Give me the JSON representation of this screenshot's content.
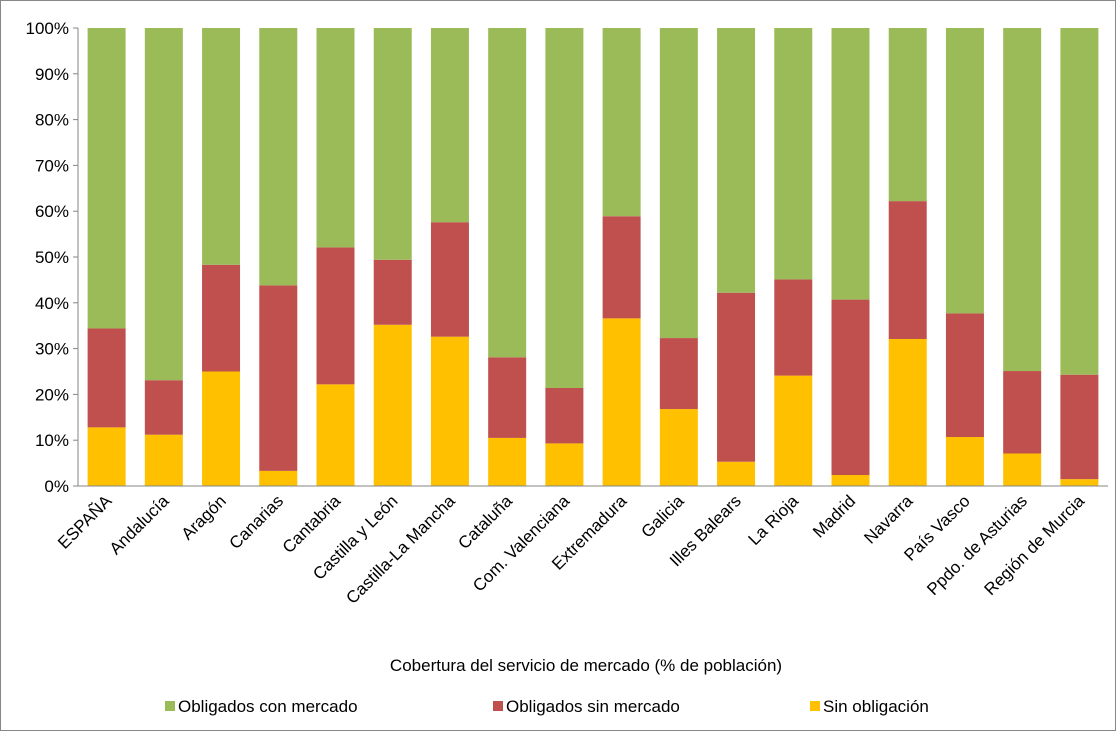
{
  "chart_data": {
    "type": "bar",
    "stacked": true,
    "categories": [
      "ESPAÑA",
      "Andalucía",
      "Aragón",
      "Canarias",
      "Cantabria",
      "Castilla y León",
      "Castilla-La Mancha",
      "Cataluña",
      "Com. Valenciana",
      "Extremadura",
      "Galicia",
      "Illes Balears",
      "La Rioja",
      "Madrid",
      "Navarra",
      "País Vasco",
      "Ppdo. de Asturias",
      "Región de Murcia"
    ],
    "series": [
      {
        "name": "Sin obligación",
        "color": "#FFC000",
        "values": [
          12.8,
          11.2,
          25.0,
          3.3,
          22.2,
          35.2,
          32.6,
          10.5,
          9.3,
          36.6,
          16.8,
          5.3,
          24.1,
          2.4,
          32.1,
          10.7,
          7.1,
          1.5
        ]
      },
      {
        "name": "Obligados sin mercado",
        "color": "#C0504D",
        "values": [
          21.6,
          11.9,
          23.3,
          40.5,
          29.9,
          14.2,
          25.0,
          17.6,
          12.1,
          22.3,
          15.5,
          36.9,
          21.0,
          38.3,
          30.1,
          27.0,
          18.0,
          22.8
        ]
      },
      {
        "name": "Obligados con mercado",
        "color": "#9BBB59",
        "values": [
          65.6,
          76.9,
          51.7,
          56.2,
          47.9,
          50.6,
          42.4,
          71.9,
          78.6,
          41.1,
          67.7,
          57.8,
          54.9,
          59.3,
          37.8,
          62.3,
          74.9,
          75.7
        ]
      }
    ],
    "legend_order": [
      "Obligados con mercado",
      "Obligados sin mercado",
      "Sin obligación"
    ],
    "ylim": [
      0,
      100
    ],
    "yticks": [
      "0%",
      "10%",
      "20%",
      "30%",
      "40%",
      "50%",
      "60%",
      "70%",
      "80%",
      "90%",
      "100%"
    ],
    "xlabel": "Cobertura del servicio de mercado (% de población)",
    "ylabel": "",
    "title": "",
    "legend_position": "bottom",
    "grid": false
  }
}
